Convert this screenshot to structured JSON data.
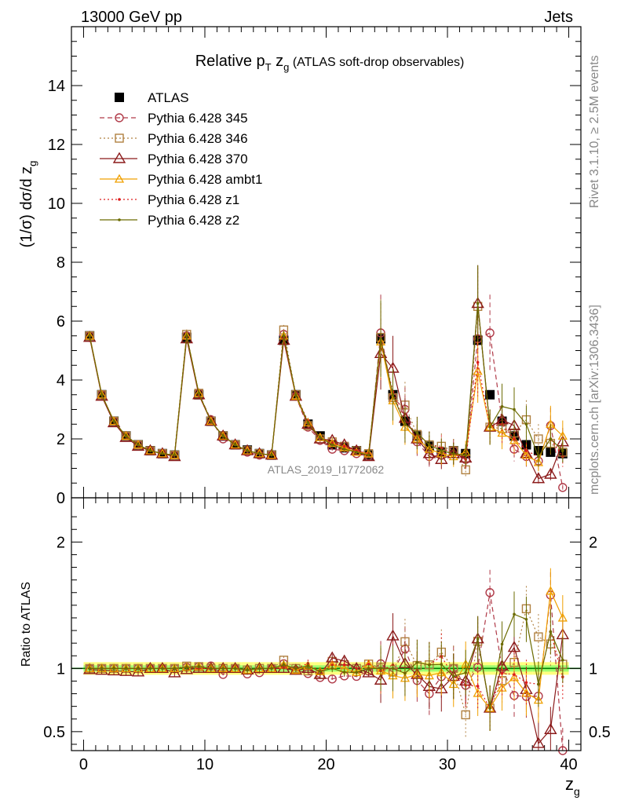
{
  "header": {
    "left": "13000 GeV pp",
    "right": "Jets"
  },
  "plot_title": {
    "prefix": "Relative p",
    "sub_T": "T",
    "mid": " z",
    "sub_g": "g",
    "suffix": " (ATLAS soft-drop observables)"
  },
  "watermark": "ATLAS_2019_I1772062",
  "side_labels": {
    "rivet": "Rivet 3.1.10, ≥ 2.5M events",
    "mcplots": "mcplots.cern.ch [arXiv:1306.3436]"
  },
  "colors": {
    "ATLAS": "#000000",
    "p345": "#b03a48",
    "p346": "#b08040",
    "p370": "#8b1a1a",
    "ambt1": "#f0a000",
    "z1": "#dd1c1c",
    "z2": "#6b6b00",
    "band_inner": "#a0ff70",
    "band_outer": "#ffff80",
    "ref_line": "#008000"
  },
  "chart_data": [
    {
      "type": "scatter",
      "panel": "main",
      "ylabel": "(1/σ) dσ/d z",
      "ylabel_sub": "g",
      "xlim": [
        -1,
        41
      ],
      "ylim": [
        0,
        16
      ],
      "yticks": [
        "0",
        "2",
        "4",
        "6",
        "8",
        "10",
        "12",
        "14"
      ],
      "x": [
        0.5,
        1.5,
        2.5,
        3.5,
        4.5,
        5.5,
        6.5,
        7.5,
        8.5,
        9.5,
        10.5,
        11.5,
        12.5,
        13.5,
        14.5,
        15.5,
        16.5,
        17.5,
        18.5,
        19.5,
        20.5,
        21.5,
        22.5,
        23.5,
        24.5,
        25.5,
        26.5,
        27.5,
        28.5,
        29.5,
        30.5,
        31.5,
        32.5,
        33.5,
        34.5,
        35.5,
        36.5,
        37.5,
        38.5,
        39.5
      ],
      "series": [
        {
          "name": "ATLAS",
          "key": "ATLAS",
          "marker": "filled-square",
          "values": [
            5.5,
            3.5,
            2.6,
            2.1,
            1.8,
            1.6,
            1.5,
            1.45,
            5.45,
            3.5,
            2.6,
            2.1,
            1.8,
            1.62,
            1.5,
            1.45,
            5.35,
            3.5,
            2.5,
            2.1,
            1.8,
            1.7,
            1.6,
            1.45,
            5.4,
            3.5,
            2.6,
            2.1,
            1.75,
            1.55,
            1.6,
            1.5,
            5.35,
            3.5,
            2.6,
            2.1,
            1.8,
            1.6,
            1.55,
            1.5
          ]
        },
        {
          "name": "Pythia 6.428 345",
          "key": "p345",
          "marker": "open-circle",
          "line": "dashed",
          "values": [
            5.5,
            3.5,
            2.6,
            2.1,
            1.8,
            1.6,
            1.5,
            1.45,
            5.5,
            3.55,
            2.65,
            2.0,
            1.8,
            1.55,
            1.45,
            1.45,
            5.55,
            3.45,
            2.4,
            1.95,
            1.65,
            1.6,
            1.5,
            1.42,
            5.6,
            3.4,
            3.0,
            1.9,
            1.4,
            1.45,
            1.6,
            1.3,
            5.4,
            5.6,
            2.6,
            1.65,
            1.4,
            1.25,
            2.45,
            0.35
          ]
        },
        {
          "name": "Pythia 6.428 346",
          "key": "p346",
          "marker": "open-square",
          "line": "dotted",
          "values": [
            5.5,
            3.5,
            2.6,
            2.1,
            1.8,
            1.6,
            1.5,
            1.45,
            5.55,
            3.55,
            2.6,
            2.1,
            1.8,
            1.6,
            1.5,
            1.45,
            5.7,
            3.5,
            2.45,
            2.0,
            1.9,
            1.75,
            1.6,
            1.5,
            5.45,
            3.4,
            3.15,
            2.15,
            1.8,
            1.75,
            1.6,
            0.95,
            6.5,
            2.4,
            2.35,
            2.2,
            2.65,
            2.0,
            1.85,
            1.55
          ]
        },
        {
          "name": "Pythia 6.428 370",
          "key": "p370",
          "marker": "open-triangle",
          "line": "solid",
          "values": [
            5.45,
            3.45,
            2.55,
            2.05,
            1.75,
            1.6,
            1.5,
            1.4,
            5.4,
            3.5,
            2.6,
            2.1,
            1.8,
            1.6,
            1.5,
            1.45,
            5.35,
            3.45,
            2.5,
            2.0,
            1.95,
            1.8,
            1.6,
            1.4,
            4.9,
            4.4,
            2.7,
            2.0,
            1.5,
            1.3,
            1.5,
            1.35,
            6.6,
            2.4,
            2.65,
            2.45,
            1.5,
            0.65,
            0.8,
            1.9
          ]
        },
        {
          "name": "Pythia 6.428 ambt1",
          "key": "ambt1",
          "marker": "open-triangle-small",
          "line": "solid",
          "values": [
            5.5,
            3.5,
            2.6,
            2.1,
            1.8,
            1.6,
            1.5,
            1.45,
            5.5,
            3.55,
            2.6,
            2.1,
            1.8,
            1.6,
            1.5,
            1.45,
            5.5,
            3.45,
            2.55,
            2.05,
            1.85,
            1.7,
            1.55,
            1.5,
            5.3,
            3.3,
            2.4,
            2.0,
            1.65,
            1.5,
            1.4,
            1.55,
            4.3,
            2.4,
            2.2,
            1.95,
            1.45,
            1.2,
            2.5,
            2.1
          ]
        },
        {
          "name": "Pythia 6.428 z1",
          "key": "z1",
          "marker": "dot",
          "line": "dotted",
          "values": [
            5.5,
            3.5,
            2.6,
            2.1,
            1.8,
            1.6,
            1.5,
            1.45,
            5.5,
            3.5,
            2.6,
            2.1,
            1.8,
            1.6,
            1.5,
            1.45,
            5.4,
            3.5,
            2.6,
            2.05,
            1.85,
            1.75,
            1.6,
            1.5,
            5.3,
            3.6,
            2.5,
            2.2,
            1.8,
            1.7,
            1.5,
            1.3,
            4.6,
            2.4,
            2.5,
            2.0,
            1.6,
            1.4,
            2.0,
            1.4
          ]
        },
        {
          "name": "Pythia 6.428 z2",
          "key": "z2",
          "marker": "dot",
          "line": "solid",
          "values": [
            5.5,
            3.5,
            2.6,
            2.1,
            1.8,
            1.6,
            1.5,
            1.45,
            5.5,
            3.55,
            2.6,
            2.1,
            1.8,
            1.6,
            1.5,
            1.45,
            5.5,
            3.5,
            2.55,
            2.05,
            1.8,
            1.65,
            1.55,
            1.45,
            5.4,
            3.5,
            2.5,
            2.2,
            1.8,
            1.6,
            1.5,
            1.45,
            6.6,
            2.4,
            3.1,
            3.0,
            2.5,
            1.4,
            2.0,
            1.6
          ]
        }
      ]
    },
    {
      "type": "line",
      "panel": "ratio",
      "ylabel": "Ratio to ATLAS",
      "xlabel": "z",
      "xlabel_sub": "g",
      "xlim": [
        -1,
        41
      ],
      "ylim": [
        0.35,
        2.35
      ],
      "yticks": [
        "0.5",
        "1",
        "2"
      ],
      "xticks": [
        "0",
        "10",
        "20",
        "30",
        "40"
      ],
      "reference": 1,
      "note": "ratios computed as series / ATLAS"
    }
  ]
}
